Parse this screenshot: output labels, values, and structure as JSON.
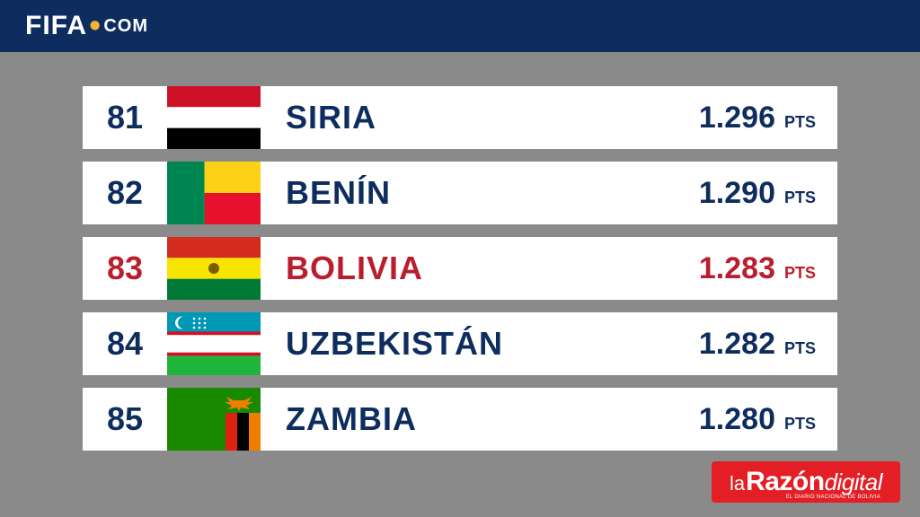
{
  "header": {
    "fifa": "FIFA",
    "com": "COM"
  },
  "pts_label": "PTS",
  "colors": {
    "bg": "#8a8a8a",
    "header_bg": "#0d2d5e",
    "text_primary": "#0d2d5e",
    "highlight": "#b91e2e",
    "footer_bg": "#e31e24",
    "dot": "#f9b233"
  },
  "rows": [
    {
      "rank": "81",
      "country": "SIRIA",
      "points": "1.296",
      "highlight": false,
      "flag": "syria"
    },
    {
      "rank": "82",
      "country": "BENÍN",
      "points": "1.290",
      "highlight": false,
      "flag": "benin"
    },
    {
      "rank": "83",
      "country": "BOLIVIA",
      "points": "1.283",
      "highlight": true,
      "flag": "bolivia"
    },
    {
      "rank": "84",
      "country": "UZBEKISTÁN",
      "points": "1.282",
      "highlight": false,
      "flag": "uzbekistan"
    },
    {
      "rank": "85",
      "country": "ZAMBIA",
      "points": "1.280",
      "highlight": false,
      "flag": "zambia"
    }
  ],
  "footer": {
    "la": "la",
    "razon": "Razón",
    "digital": "digital",
    "sub": "EL DIARIO NACIONAL DE BOLIVIA"
  }
}
